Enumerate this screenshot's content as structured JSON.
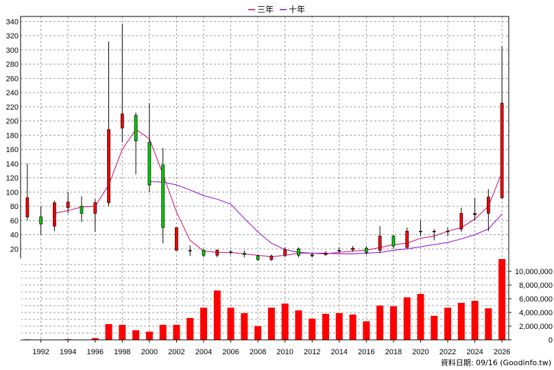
{
  "chart_data": {
    "type": "candlestick",
    "legend": [
      {
        "name": "三年",
        "color": "#cc0066"
      },
      {
        "name": "十年",
        "color": "#8800cc"
      }
    ],
    "legend_position": "top-center",
    "grid": true,
    "price_axis": {
      "ticks": [
        20,
        40,
        60,
        80,
        100,
        120,
        140,
        160,
        180,
        200,
        220,
        240,
        260,
        280,
        300,
        320,
        340
      ],
      "range": [
        0,
        345
      ]
    },
    "volume_axis": {
      "ticks": [
        "0",
        "2,000,000",
        "4,000,000",
        "6,000,000",
        "8,000,000",
        "10,000,000"
      ],
      "range": [
        0,
        12000000
      ]
    },
    "x_axis": {
      "ticks": [
        "1992",
        "1994",
        "1996",
        "1998",
        "2000",
        "2002",
        "2004",
        "2006",
        "2008",
        "2010",
        "2012",
        "2014",
        "2016",
        "2018",
        "2020",
        "2022",
        "2024",
        "2026"
      ],
      "range": [
        1990.5,
        2026.5
      ]
    },
    "candles": [
      {
        "year": 1991,
        "open": 65,
        "close": 92,
        "high": 140,
        "low": 60
      },
      {
        "year": 1992,
        "open": 65,
        "close": 55,
        "high": 80,
        "low": 40
      },
      {
        "year": 1993,
        "open": 52,
        "close": 85,
        "high": 88,
        "low": 45
      },
      {
        "year": 1994,
        "open": 78,
        "close": 86,
        "high": 100,
        "low": 70
      },
      {
        "year": 1995,
        "open": 80,
        "close": 70,
        "high": 94,
        "low": 58
      },
      {
        "year": 1996,
        "open": 70,
        "close": 85,
        "high": 90,
        "low": 44
      },
      {
        "year": 1997,
        "open": 85,
        "close": 188,
        "high": 312,
        "low": 80
      },
      {
        "year": 1998,
        "open": 190,
        "close": 210,
        "high": 337,
        "low": 170
      },
      {
        "year": 1999,
        "open": 208,
        "close": 172,
        "high": 212,
        "low": 125
      },
      {
        "year": 2000,
        "open": 170,
        "close": 110,
        "high": 225,
        "low": 100
      },
      {
        "year": 2001,
        "open": 138,
        "close": 50,
        "high": 162,
        "low": 28
      },
      {
        "year": 2002,
        "open": 18,
        "close": 50,
        "high": 50,
        "low": 18
      },
      {
        "year": 2003,
        "open": 17,
        "close": 18,
        "high": 25,
        "low": 10
      },
      {
        "year": 2004,
        "open": 18,
        "close": 11,
        "high": 20,
        "low": 8
      },
      {
        "year": 2005,
        "open": 11,
        "close": 18,
        "high": 20,
        "low": 8
      },
      {
        "year": 2006,
        "open": 16,
        "close": 15,
        "high": 18,
        "low": 12
      },
      {
        "year": 2007,
        "open": 14,
        "close": 12,
        "high": 18,
        "low": 8
      },
      {
        "year": 2008,
        "open": 10,
        "close": 5,
        "high": 12,
        "low": 3
      },
      {
        "year": 2009,
        "open": 5,
        "close": 10,
        "high": 12,
        "low": 3
      },
      {
        "year": 2010,
        "open": 11,
        "close": 19,
        "high": 22,
        "low": 8
      },
      {
        "year": 2011,
        "open": 20,
        "close": 11,
        "high": 22,
        "low": 8
      },
      {
        "year": 2012,
        "open": 10,
        "close": 12,
        "high": 14,
        "low": 8
      },
      {
        "year": 2013,
        "open": 12,
        "close": 14,
        "high": 17,
        "low": 10
      },
      {
        "year": 2014,
        "open": 17,
        "close": 18,
        "high": 22,
        "low": 14
      },
      {
        "year": 2015,
        "open": 19,
        "close": 21,
        "high": 24,
        "low": 16
      },
      {
        "year": 2016,
        "open": 21,
        "close": 15,
        "high": 24,
        "low": 12
      },
      {
        "year": 2017,
        "open": 18,
        "close": 38,
        "high": 52,
        "low": 14
      },
      {
        "year": 2018,
        "open": 38,
        "close": 24,
        "high": 40,
        "low": 20
      },
      {
        "year": 2019,
        "open": 22,
        "close": 45,
        "high": 50,
        "low": 20
      },
      {
        "year": 2020,
        "open": 44,
        "close": 45,
        "high": 60,
        "low": 38
      },
      {
        "year": 2021,
        "open": 44,
        "close": 45,
        "high": 48,
        "low": 32
      },
      {
        "year": 2022,
        "open": 44,
        "close": 45,
        "high": 50,
        "low": 38
      },
      {
        "year": 2023,
        "open": 48,
        "close": 70,
        "high": 78,
        "low": 44
      },
      {
        "year": 2024,
        "open": 68,
        "close": 70,
        "high": 92,
        "low": 60
      },
      {
        "year": 2025,
        "open": 70,
        "close": 93,
        "high": 104,
        "low": 45
      },
      {
        "year": 2026,
        "open": 92,
        "close": 225,
        "high": 305,
        "low": 90
      }
    ],
    "ma_3y": {
      "name": "三年",
      "points": [
        [
          1993,
          70
        ],
        [
          1994,
          74
        ],
        [
          1995,
          79
        ],
        [
          1996,
          80
        ],
        [
          1997,
          110
        ],
        [
          1998,
          160
        ],
        [
          1999,
          188
        ],
        [
          2000,
          175
        ],
        [
          2001,
          125
        ],
        [
          2002,
          72
        ],
        [
          2003,
          32
        ],
        [
          2004,
          17
        ],
        [
          2005,
          15
        ],
        [
          2006,
          15
        ],
        [
          2007,
          13
        ],
        [
          2008,
          11
        ],
        [
          2009,
          9
        ],
        [
          2010,
          11
        ],
        [
          2011,
          14
        ],
        [
          2012,
          14
        ],
        [
          2013,
          13
        ],
        [
          2014,
          15
        ],
        [
          2015,
          17
        ],
        [
          2016,
          18
        ],
        [
          2017,
          22
        ],
        [
          2018,
          26
        ],
        [
          2019,
          28
        ],
        [
          2020,
          35
        ],
        [
          2021,
          38
        ],
        [
          2022,
          45
        ],
        [
          2023,
          50
        ],
        [
          2024,
          62
        ],
        [
          2025,
          80
        ],
        [
          2026,
          128
        ]
      ]
    },
    "ma_10y": {
      "name": "十年",
      "points": [
        [
          2000,
          115
        ],
        [
          2001,
          114
        ],
        [
          2002,
          110
        ],
        [
          2003,
          103
        ],
        [
          2004,
          95
        ],
        [
          2005,
          90
        ],
        [
          2006,
          83
        ],
        [
          2007,
          63
        ],
        [
          2008,
          44
        ],
        [
          2009,
          28
        ],
        [
          2010,
          19
        ],
        [
          2011,
          15
        ],
        [
          2012,
          14
        ],
        [
          2013,
          14
        ],
        [
          2014,
          13
        ],
        [
          2015,
          13
        ],
        [
          2016,
          14
        ],
        [
          2017,
          15
        ],
        [
          2018,
          18
        ],
        [
          2019,
          20
        ],
        [
          2020,
          23
        ],
        [
          2021,
          26
        ],
        [
          2022,
          29
        ],
        [
          2023,
          34
        ],
        [
          2024,
          40
        ],
        [
          2025,
          48
        ],
        [
          2026,
          69
        ]
      ]
    },
    "volume": [
      {
        "year": 1991,
        "value": 80000
      },
      {
        "year": 1992,
        "value": 50000
      },
      {
        "year": 1993,
        "value": 50000
      },
      {
        "year": 1994,
        "value": 100000
      },
      {
        "year": 1995,
        "value": 50000
      },
      {
        "year": 1996,
        "value": 250000
      },
      {
        "year": 1997,
        "value": 2300000
      },
      {
        "year": 1998,
        "value": 2200000
      },
      {
        "year": 1999,
        "value": 1400000
      },
      {
        "year": 2000,
        "value": 1200000
      },
      {
        "year": 2001,
        "value": 2200000
      },
      {
        "year": 2002,
        "value": 2200000
      },
      {
        "year": 2003,
        "value": 3200000
      },
      {
        "year": 2004,
        "value": 4700000
      },
      {
        "year": 2005,
        "value": 7200000
      },
      {
        "year": 2006,
        "value": 4700000
      },
      {
        "year": 2007,
        "value": 3900000
      },
      {
        "year": 2008,
        "value": 2000000
      },
      {
        "year": 2009,
        "value": 4700000
      },
      {
        "year": 2010,
        "value": 5300000
      },
      {
        "year": 2011,
        "value": 4300000
      },
      {
        "year": 2012,
        "value": 3100000
      },
      {
        "year": 2013,
        "value": 3800000
      },
      {
        "year": 2014,
        "value": 3900000
      },
      {
        "year": 2015,
        "value": 3700000
      },
      {
        "year": 2016,
        "value": 2700000
      },
      {
        "year": 2017,
        "value": 5000000
      },
      {
        "year": 2018,
        "value": 4900000
      },
      {
        "year": 2019,
        "value": 6200000
      },
      {
        "year": 2020,
        "value": 6700000
      },
      {
        "year": 2021,
        "value": 3500000
      },
      {
        "year": 2022,
        "value": 4700000
      },
      {
        "year": 2023,
        "value": 5400000
      },
      {
        "year": 2024,
        "value": 5700000
      },
      {
        "year": 2025,
        "value": 4600000
      },
      {
        "year": 2026,
        "value": 11800000
      }
    ],
    "colors": {
      "up": "#ff0000",
      "down": "#00cc00",
      "volume": "#ff0000",
      "wick": "#000000",
      "grid": "#999999"
    }
  },
  "footer": {
    "text": "資料日期: 09/16  (Goodinfo.tw)"
  }
}
